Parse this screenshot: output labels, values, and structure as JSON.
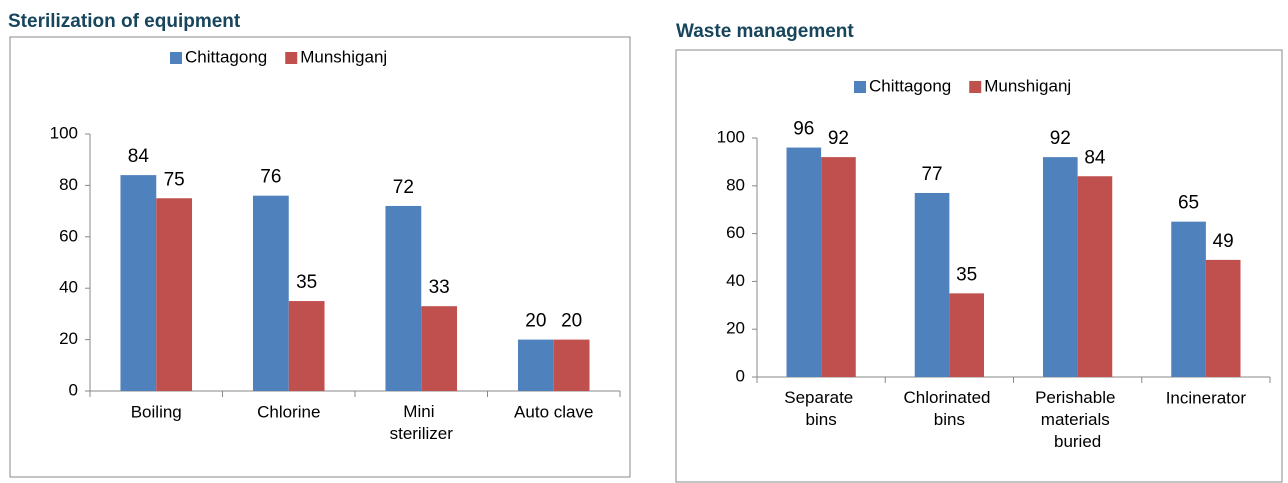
{
  "chart_data": [
    {
      "type": "bar",
      "title": "Sterilization of equipment",
      "categories": [
        "Boiling",
        "Chlorine",
        "Mini sterilizer",
        "Auto clave"
      ],
      "series": [
        {
          "name": "Chittagong",
          "color": "#4f81bd",
          "values": [
            84,
            76,
            72,
            20
          ]
        },
        {
          "name": "Munshiganj",
          "color": "#c0504d",
          "values": [
            75,
            35,
            33,
            20
          ]
        }
      ],
      "ylim": [
        0,
        100
      ],
      "yticks": [
        0,
        20,
        40,
        60,
        80,
        100
      ],
      "legend": "top"
    },
    {
      "type": "bar",
      "title": "Waste management",
      "categories": [
        "Separate bins",
        "Chlorinated bins",
        "Perishable materials buried",
        "Incinerator"
      ],
      "series": [
        {
          "name": "Chittagong",
          "color": "#4f81bd",
          "values": [
            96,
            77,
            92,
            65
          ]
        },
        {
          "name": "Munshiganj",
          "color": "#c0504d",
          "values": [
            92,
            35,
            84,
            49
          ]
        }
      ],
      "ylim": [
        0,
        100
      ],
      "yticks": [
        0,
        20,
        40,
        60,
        80,
        100
      ],
      "legend": "top"
    }
  ]
}
